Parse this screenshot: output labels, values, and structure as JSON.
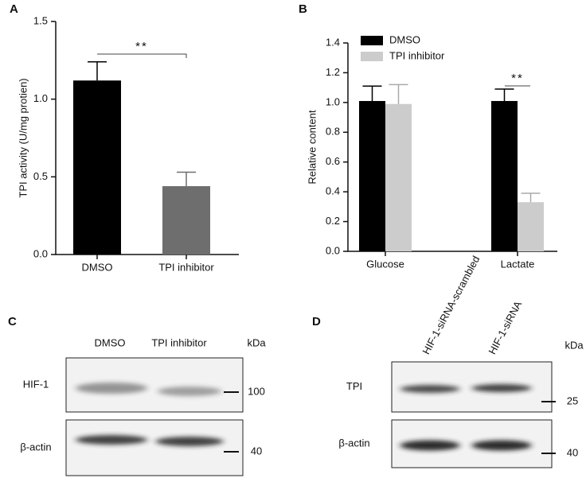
{
  "chart_data": [
    {
      "type": "bar",
      "panel": "A",
      "ylabel": "TPI activity (U/mg protien)",
      "categories": [
        "DMSO",
        "TPI inhibitor"
      ],
      "values": [
        1.12,
        0.44
      ],
      "errors": [
        0.12,
        0.09
      ],
      "colors": [
        "#000000",
        "#6e6e6e"
      ],
      "ylim": [
        0,
        1.5
      ],
      "yticks": [
        {
          "value": 0,
          "label": "0.0"
        },
        0.5,
        {
          "value": 1,
          "label": "1.0"
        },
        1.5
      ],
      "annotation": "**"
    },
    {
      "type": "grouped-bar",
      "panel": "B",
      "ylabel": "Relative content",
      "categories": [
        "Glucose",
        "Lactate"
      ],
      "series": [
        {
          "name": "DMSO",
          "color": "#000000",
          "values": [
            1.01,
            1.01
          ],
          "errors": [
            0.1,
            0.08
          ]
        },
        {
          "name": "TPI inhibitor",
          "color": "#cccccc",
          "values": [
            0.99,
            0.33
          ],
          "errors": [
            0.13,
            0.06
          ]
        }
      ],
      "ylim": [
        0,
        1.4
      ],
      "yticks": [
        {
          "value": 0,
          "label": "0.0"
        },
        0.2,
        0.4,
        0.6,
        0.8,
        {
          "value": 1,
          "label": "1.0"
        },
        1.2,
        1.4
      ],
      "legend": "top-left",
      "annotation": "**"
    }
  ],
  "blots": [
    {
      "panel": "C",
      "columns": [
        "DMSO",
        "TPI inhibitor"
      ],
      "unit": "kDa",
      "rows": [
        {
          "label": "HIF-1",
          "marker": 100
        },
        {
          "label": "β-actin",
          "marker": 40
        }
      ]
    },
    {
      "panel": "D",
      "columns": [
        "HIF-1-siRNA-scrambled",
        "HIF-1-siRNA"
      ],
      "unit": "kDa",
      "rows": [
        {
          "label": "TPI",
          "marker": 25
        },
        {
          "label": "β-actin",
          "marker": 40
        }
      ]
    }
  ]
}
